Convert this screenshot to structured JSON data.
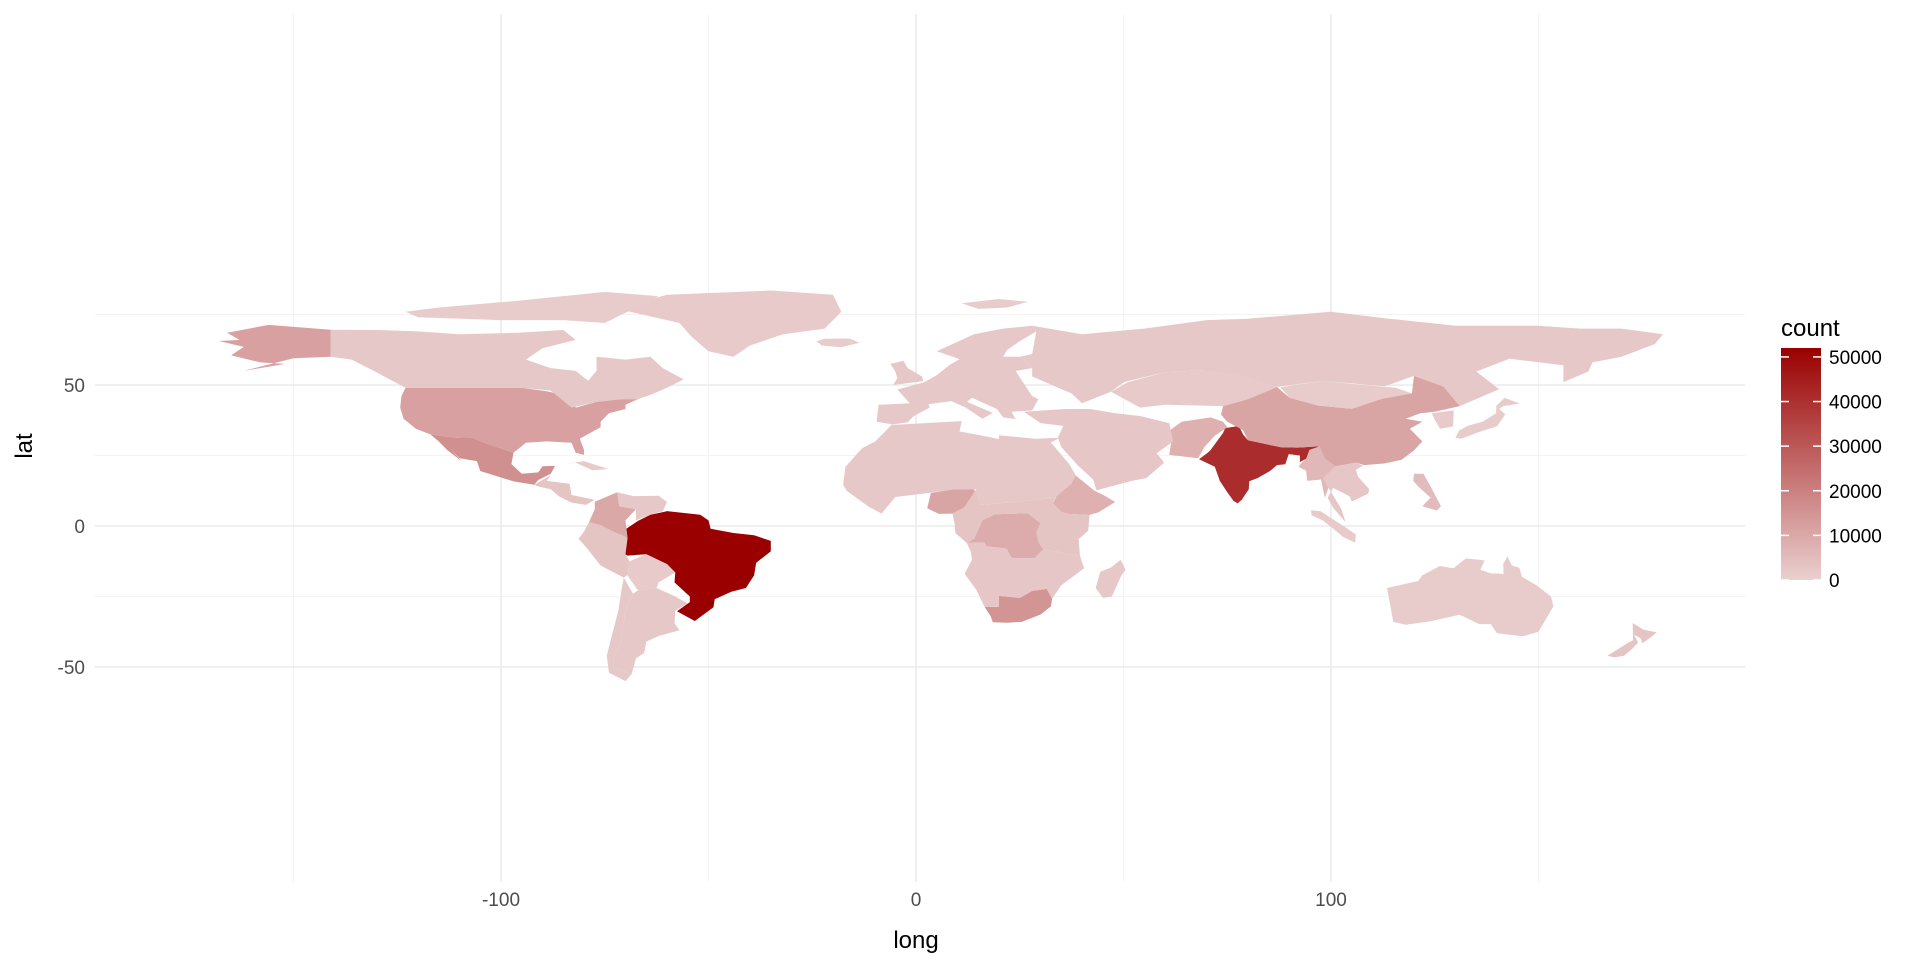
{
  "chart_data": {
    "type": "map",
    "title": "",
    "xlabel": "long",
    "ylabel": "lat",
    "xlim": [
      -200,
      200
    ],
    "ylim": [
      -60,
      90
    ],
    "x_ticks": [
      -100,
      0,
      100
    ],
    "x_tick_labels": [
      "-100",
      "0",
      "100"
    ],
    "y_ticks": [
      -50,
      0,
      50
    ],
    "y_tick_labels": [
      "-50",
      "0",
      "50"
    ],
    "x_minor_ticks": [
      -150,
      -50,
      50,
      150
    ],
    "y_minor_ticks": [
      -25,
      25,
      75
    ],
    "grid": true,
    "legend": {
      "title": "count",
      "placement": "right",
      "min": 0,
      "max": 52000,
      "breaks": [
        0,
        10000,
        20000,
        30000,
        40000,
        50000
      ],
      "break_labels": [
        "0",
        "10000",
        "20000",
        "30000",
        "40000",
        "50000"
      ],
      "low_color": "#ead0d0",
      "high_color": "#9a0000"
    },
    "regions": [
      {
        "name": "Brazil",
        "value": 52000
      },
      {
        "name": "India",
        "value": 41000
      },
      {
        "name": "Mexico",
        "value": 16000
      },
      {
        "name": "South Africa",
        "value": 15000
      },
      {
        "name": "United States",
        "value": 12000
      },
      {
        "name": "Alaska",
        "value": 12000
      },
      {
        "name": "China",
        "value": 11000
      },
      {
        "name": "Nigeria",
        "value": 11000
      },
      {
        "name": "Colombia",
        "value": 10000
      },
      {
        "name": "DR Congo",
        "value": 9000
      },
      {
        "name": "Ethiopia",
        "value": 8000
      },
      {
        "name": "Pakistan",
        "value": 8000
      },
      {
        "name": "Myanmar",
        "value": 6000
      },
      {
        "name": "Philippines",
        "value": 5000
      },
      {
        "name": "Canada",
        "value": 2000
      },
      {
        "name": "Greenland",
        "value": 1500
      },
      {
        "name": "Russia",
        "value": 2000
      },
      {
        "name": "Europe",
        "value": 2000
      },
      {
        "name": "Middle East",
        "value": 2500
      },
      {
        "name": "North Africa",
        "value": 2000
      },
      {
        "name": "Central Africa",
        "value": 3000
      },
      {
        "name": "Southern Africa",
        "value": 2500
      },
      {
        "name": "Madagascar",
        "value": 2000
      },
      {
        "name": "Kazakhstan",
        "value": 1500
      },
      {
        "name": "Mongolia",
        "value": 1000
      },
      {
        "name": "Japan",
        "value": 1000
      },
      {
        "name": "Korea",
        "value": 1500
      },
      {
        "name": "Southeast Asia",
        "value": 2500
      },
      {
        "name": "Indonesia",
        "value": 1500
      },
      {
        "name": "Australia",
        "value": 1000
      },
      {
        "name": "New Zealand",
        "value": 3000
      },
      {
        "name": "Central America",
        "value": 3000
      },
      {
        "name": "Venezuela",
        "value": 2000
      },
      {
        "name": "Peru",
        "value": 3000
      },
      {
        "name": "Bolivia",
        "value": 1500
      },
      {
        "name": "Chile",
        "value": 2000
      },
      {
        "name": "Argentina",
        "value": 2000
      },
      {
        "name": "Caribbean",
        "value": 1500
      },
      {
        "name": "Arctic Islands",
        "value": 1000
      },
      {
        "name": "Iceland",
        "value": 1000
      },
      {
        "name": "Svalbard",
        "value": 1000
      },
      {
        "name": "United Kingdom",
        "value": 2000
      }
    ]
  }
}
